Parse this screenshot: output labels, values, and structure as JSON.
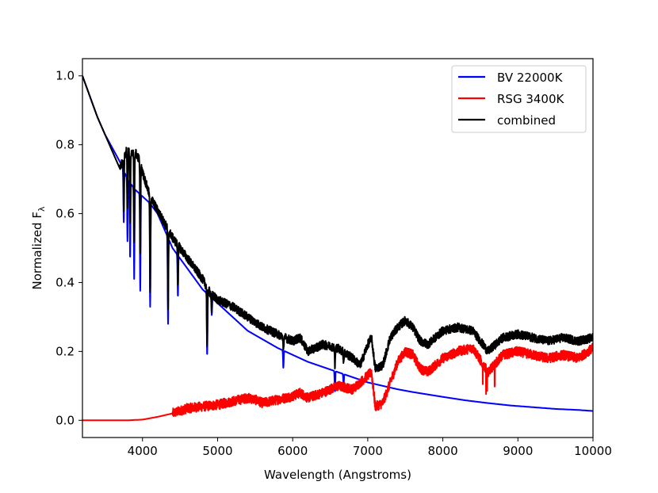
{
  "chart_data": {
    "type": "line",
    "title": "",
    "xlabel": "Wavelength (Angstroms)",
    "ylabel_main": "Normalized F",
    "ylabel_sub": "λ",
    "xlim": [
      3200,
      10000
    ],
    "ylim": [
      -0.05,
      1.05
    ],
    "xticks": [
      4000,
      5000,
      6000,
      7000,
      8000,
      9000,
      10000
    ],
    "xtick_labels": [
      "4000",
      "5000",
      "6000",
      "7000",
      "8000",
      "9000",
      "10000"
    ],
    "yticks": [
      0.0,
      0.2,
      0.4,
      0.6,
      0.8,
      1.0
    ],
    "ytick_labels": [
      "0.0",
      "0.2",
      "0.4",
      "0.6",
      "0.8",
      "1.0"
    ],
    "legend_position": "top-right",
    "series": [
      {
        "name": "BV 22000K",
        "color": "#0000ff",
        "x": [
          3200,
          3300,
          3400,
          3500,
          3600,
          3700,
          3800,
          3900,
          4000,
          4100,
          4200,
          4300,
          4400,
          4500,
          4600,
          4700,
          4800,
          4900,
          5000,
          5200,
          5400,
          5600,
          5800,
          6000,
          6200,
          6400,
          6600,
          6800,
          7000,
          7200,
          7400,
          7600,
          7800,
          8000,
          8300,
          8600,
          8900,
          9200,
          9500,
          9800,
          10000
        ],
        "y": [
          1.0,
          0.94,
          0.88,
          0.83,
          0.79,
          0.75,
          0.7,
          0.67,
          0.65,
          0.63,
          0.6,
          0.55,
          0.5,
          0.47,
          0.44,
          0.41,
          0.38,
          0.36,
          0.34,
          0.3,
          0.26,
          0.235,
          0.21,
          0.19,
          0.17,
          0.155,
          0.14,
          0.125,
          0.11,
          0.1,
          0.09,
          0.082,
          0.075,
          0.068,
          0.058,
          0.05,
          0.043,
          0.038,
          0.033,
          0.03,
          0.027
        ],
        "absorption_lines": [
          {
            "x": 3750,
            "depth": 0.15
          },
          {
            "x": 3800,
            "depth": 0.18
          },
          {
            "x": 3835,
            "depth": 0.22
          },
          {
            "x": 3889,
            "depth": 0.27
          },
          {
            "x": 3970,
            "depth": 0.28
          },
          {
            "x": 4102,
            "depth": 0.3
          },
          {
            "x": 4340,
            "depth": 0.25
          },
          {
            "x": 4471,
            "depth": 0.12
          },
          {
            "x": 4861,
            "depth": 0.18
          },
          {
            "x": 4922,
            "depth": 0.05
          },
          {
            "x": 5876,
            "depth": 0.05
          },
          {
            "x": 6563,
            "depth": 0.06
          },
          {
            "x": 6678,
            "depth": 0.03
          }
        ]
      },
      {
        "name": "RSG 3400K",
        "color": "#ff0000",
        "x": [
          3200,
          3500,
          3800,
          4000,
          4200,
          4400,
          4600,
          4800,
          5000,
          5200,
          5400,
          5500,
          5600,
          5800,
          6000,
          6100,
          6200,
          6400,
          6600,
          6800,
          7000,
          7050,
          7100,
          7200,
          7300,
          7400,
          7500,
          7600,
          7700,
          7800,
          8000,
          8200,
          8400,
          8600,
          8800,
          9000,
          9200,
          9400,
          9600,
          9800,
          10000
        ],
        "y": [
          0.0,
          0.0,
          0.0,
          0.002,
          0.01,
          0.02,
          0.035,
          0.04,
          0.045,
          0.055,
          0.065,
          0.06,
          0.05,
          0.06,
          0.07,
          0.08,
          0.065,
          0.08,
          0.1,
          0.09,
          0.13,
          0.14,
          0.04,
          0.05,
          0.11,
          0.17,
          0.2,
          0.19,
          0.15,
          0.14,
          0.18,
          0.2,
          0.21,
          0.14,
          0.19,
          0.2,
          0.19,
          0.18,
          0.19,
          0.18,
          0.21
        ]
      },
      {
        "name": "combined",
        "color": "#000000",
        "x": [
          3200,
          3300,
          3400,
          3500,
          3600,
          3700,
          3750,
          3800,
          3850,
          3900,
          3950,
          4000,
          4100,
          4200,
          4300,
          4400,
          4500,
          4600,
          4700,
          4800,
          4900,
          5000,
          5200,
          5400,
          5600,
          5800,
          6000,
          6100,
          6200,
          6400,
          6600,
          6800,
          6900,
          7000,
          7050,
          7100,
          7200,
          7300,
          7400,
          7500,
          7600,
          7700,
          7800,
          8000,
          8200,
          8400,
          8600,
          8800,
          9000,
          9200,
          9400,
          9600,
          9800,
          10000
        ],
        "y": [
          1.0,
          0.94,
          0.88,
          0.83,
          0.78,
          0.73,
          0.76,
          0.79,
          0.77,
          0.78,
          0.76,
          0.72,
          0.65,
          0.61,
          0.57,
          0.53,
          0.5,
          0.47,
          0.44,
          0.41,
          0.37,
          0.35,
          0.33,
          0.3,
          0.27,
          0.25,
          0.23,
          0.24,
          0.2,
          0.22,
          0.21,
          0.18,
          0.16,
          0.22,
          0.24,
          0.15,
          0.16,
          0.24,
          0.27,
          0.29,
          0.27,
          0.23,
          0.22,
          0.26,
          0.27,
          0.26,
          0.2,
          0.24,
          0.25,
          0.24,
          0.23,
          0.24,
          0.23,
          0.24
        ]
      }
    ]
  }
}
